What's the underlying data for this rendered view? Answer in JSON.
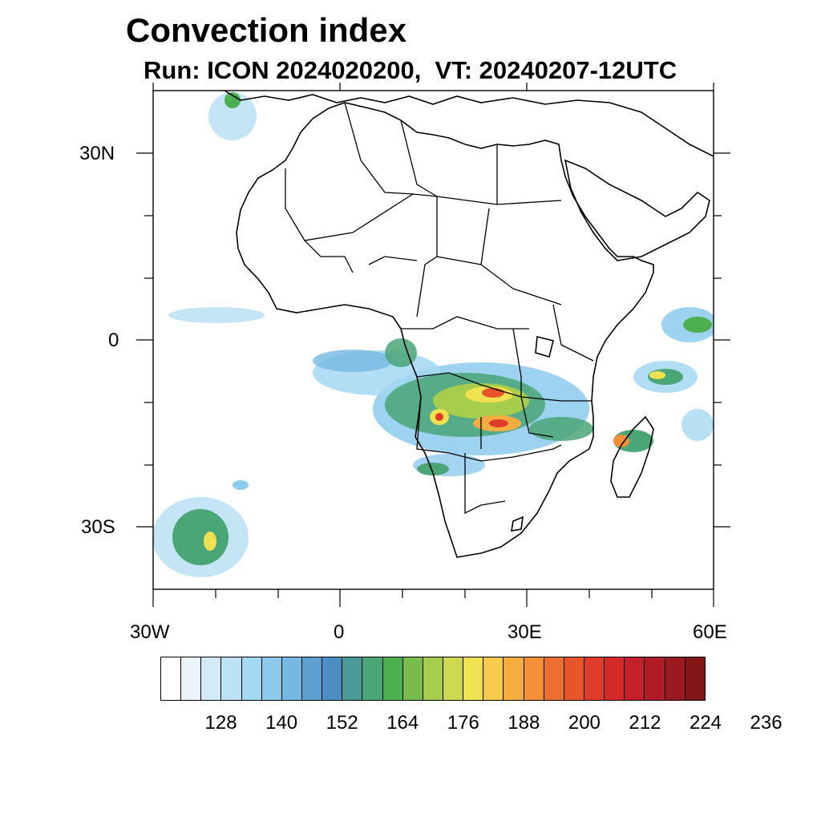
{
  "title": "Convection index",
  "subtitle": "Run: ICON 2024020200,  VT: 20240207-12UTC",
  "map": {
    "projection": "cylindrical equidistant",
    "lon_range": [
      -30,
      60
    ],
    "lat_range": [
      -40,
      40
    ],
    "x_axis_labels": [
      "30W",
      "0",
      "30E",
      "60E"
    ],
    "y_axis_labels": [
      "30N",
      "0",
      "30S"
    ]
  },
  "colorbar": {
    "colors": [
      "#ffffff",
      "#e9f4fb",
      "#d3ebf8",
      "#bce2f5",
      "#a5d8f3",
      "#8ccbee",
      "#77b8e3",
      "#5e9fd2",
      "#4a8ec2",
      "#4a9b98",
      "#4aa577",
      "#4cb050",
      "#78bd4c",
      "#a6cd4e",
      "#cfd94f",
      "#f0e150",
      "#f7ca4b",
      "#f5ad40",
      "#f49138",
      "#ee7030",
      "#e8552b",
      "#df3a2a",
      "#d42a2a",
      "#c3202a",
      "#b01d24",
      "#9b1a1f",
      "#851616"
    ],
    "tick_labels": [
      "128",
      "140",
      "152",
      "164",
      "176",
      "188",
      "200",
      "212",
      "224",
      "236"
    ]
  }
}
